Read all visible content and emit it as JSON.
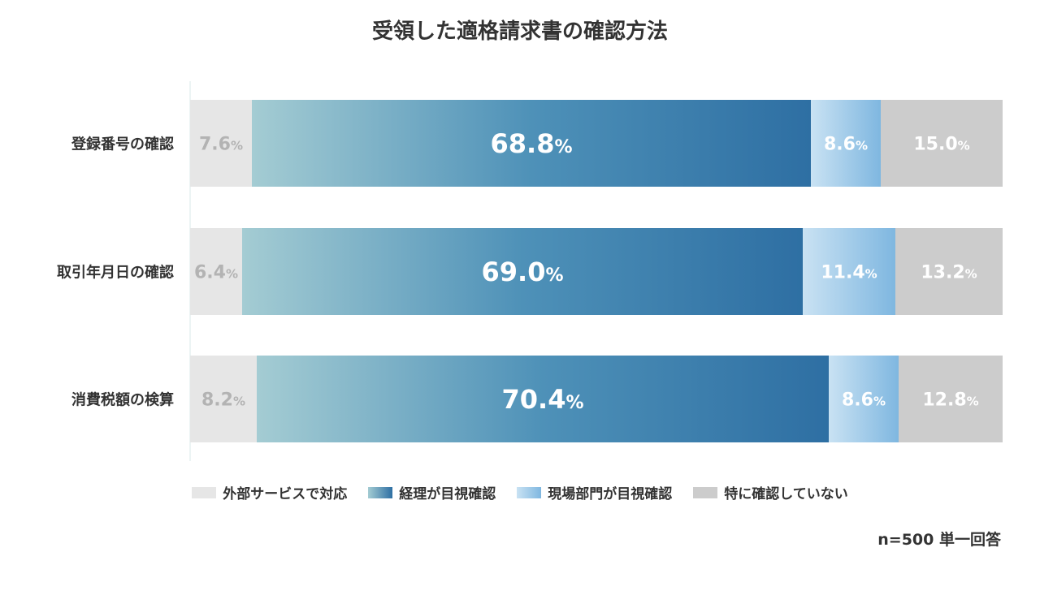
{
  "chart_data": {
    "type": "bar",
    "orientation": "horizontal",
    "stacked": true,
    "percent": true,
    "title": "受領した適格請求書の確認方法",
    "categories": [
      "登録番号の確認",
      "取引年月日の確認",
      "消費税額の検算"
    ],
    "series": [
      {
        "name": "外部サービスで対応",
        "values": [
          7.6,
          6.4,
          8.2
        ],
        "color": "#e6e6e6"
      },
      {
        "name": "経理が目視確認",
        "values": [
          68.8,
          69.0,
          70.4
        ],
        "color": "#2e6fa3"
      },
      {
        "name": "現場部門が目視確認",
        "values": [
          8.6,
          11.4,
          8.6
        ],
        "color": "#7fb7e0"
      },
      {
        "name": "特に確認していない",
        "values": [
          15.0,
          13.2,
          12.8
        ],
        "color": "#cccccc"
      }
    ],
    "xlim": [
      0,
      100
    ],
    "legend_position": "bottom",
    "grid": false,
    "note": "n=500 単一回答"
  }
}
